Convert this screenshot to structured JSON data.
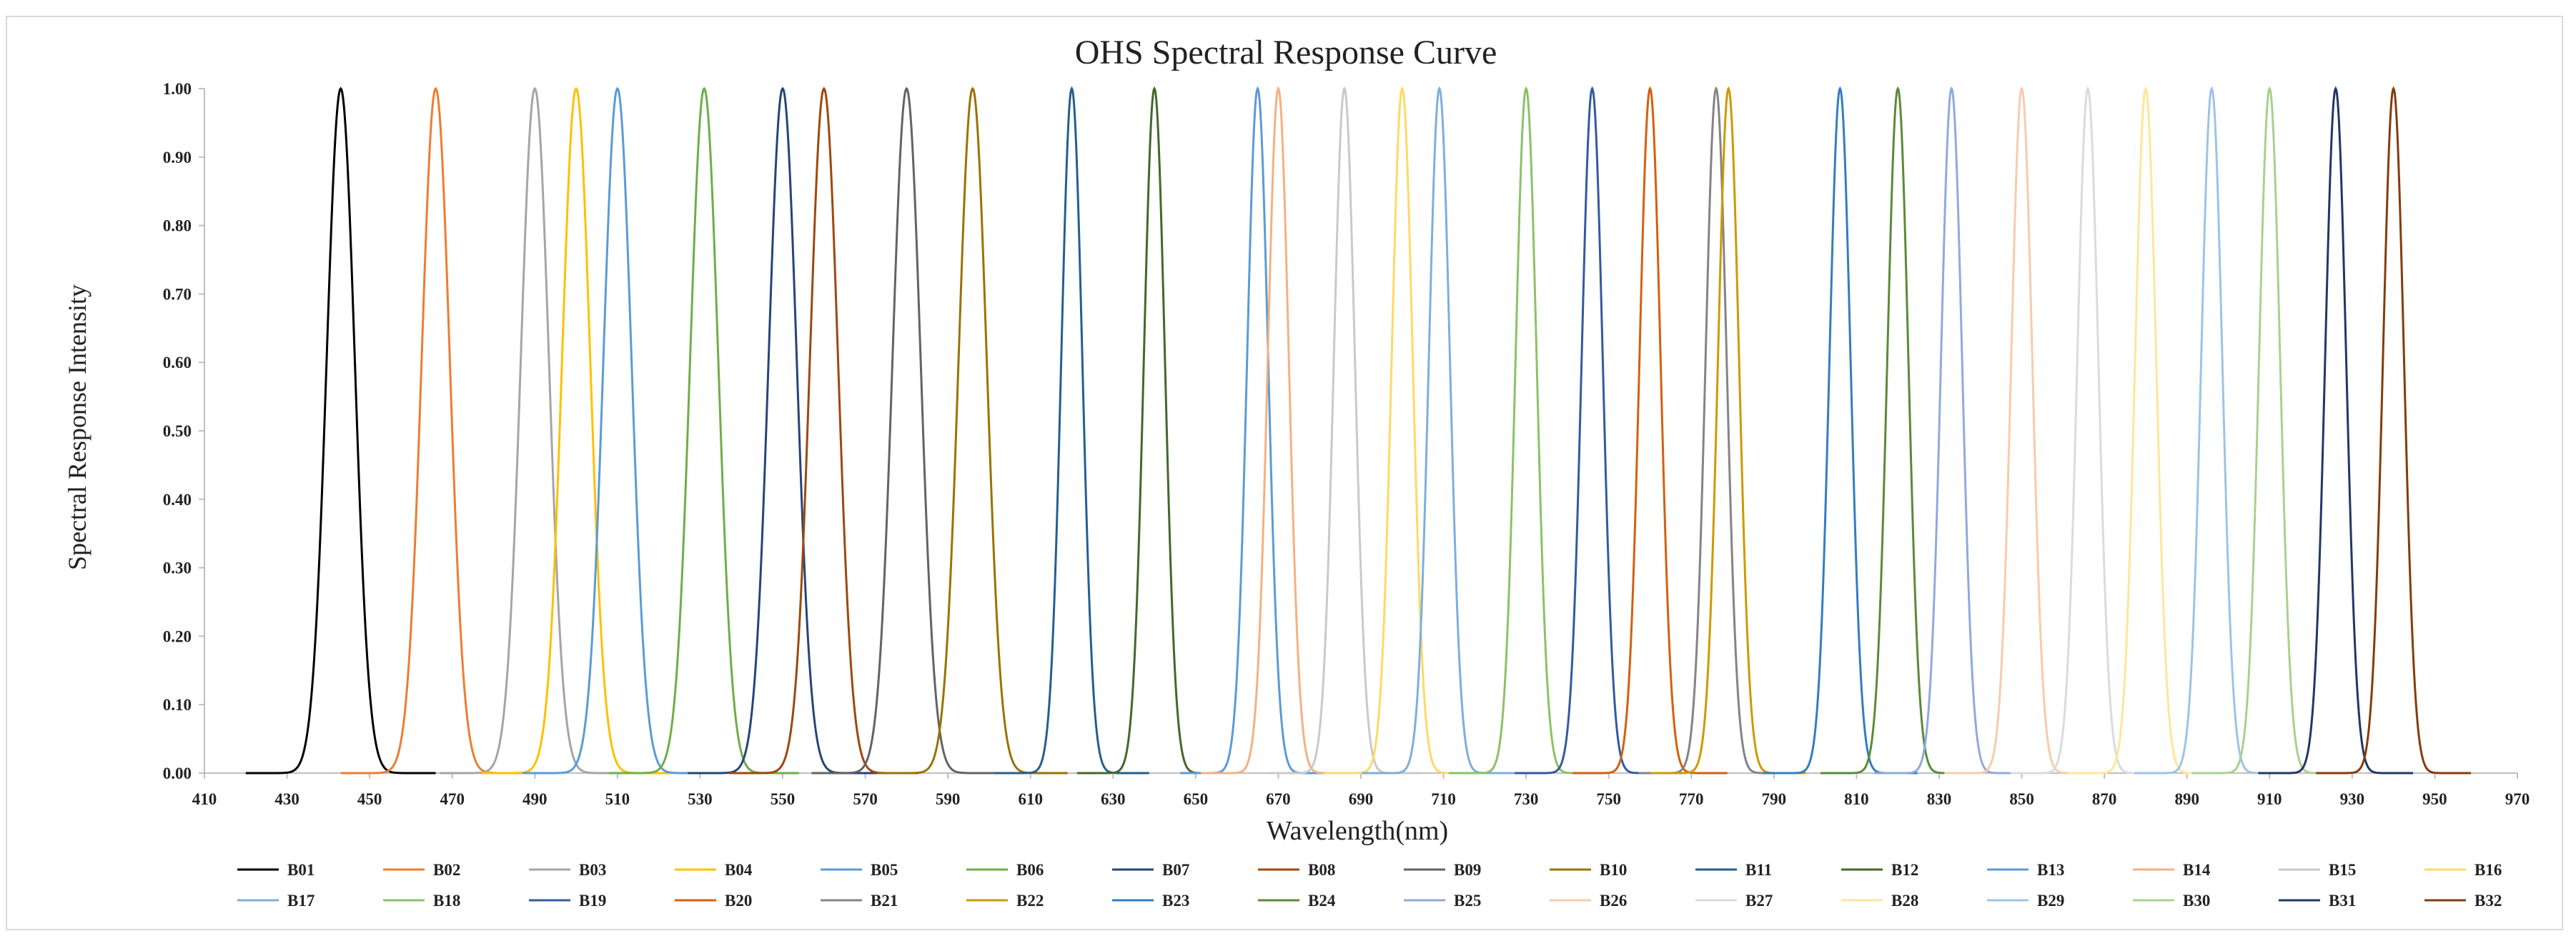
{
  "chart_data": {
    "type": "line",
    "title": "OHS Spectral Response Curve",
    "xlabel": "Wavelength(nm)",
    "ylabel": "Spectral Response Intensity",
    "xlim": [
      410,
      970
    ],
    "ylim": [
      0,
      1
    ],
    "x_ticks": [
      "410",
      "430",
      "450",
      "470",
      "490",
      "510",
      "530",
      "550",
      "570",
      "590",
      "610",
      "630",
      "650",
      "670",
      "690",
      "710",
      "730",
      "750",
      "770",
      "790",
      "810",
      "830",
      "850",
      "870",
      "890",
      "910",
      "930",
      "950",
      "970"
    ],
    "y_ticks": [
      "0.00",
      "0.10",
      "0.20",
      "0.30",
      "0.40",
      "0.50",
      "0.60",
      "0.70",
      "0.80",
      "0.90",
      "1.00"
    ],
    "grid": false,
    "legend": "bottom",
    "series": [
      {
        "name": "B01",
        "center": 443,
        "fwhm": 8,
        "color": "#000000"
      },
      {
        "name": "B02",
        "center": 466,
        "fwhm": 8,
        "color": "#ED7D31"
      },
      {
        "name": "B03",
        "center": 490,
        "fwhm": 8,
        "color": "#A5A5A5"
      },
      {
        "name": "B04",
        "center": 500,
        "fwhm": 8,
        "color": "#FFC000"
      },
      {
        "name": "B05",
        "center": 510,
        "fwhm": 8,
        "color": "#5B9BD5"
      },
      {
        "name": "B06",
        "center": 531,
        "fwhm": 8,
        "color": "#70AD47"
      },
      {
        "name": "B07",
        "center": 550,
        "fwhm": 8,
        "color": "#264478"
      },
      {
        "name": "B08",
        "center": 560,
        "fwhm": 8,
        "color": "#9E480E"
      },
      {
        "name": "B09",
        "center": 580,
        "fwhm": 8,
        "color": "#636363"
      },
      {
        "name": "B10",
        "center": 596,
        "fwhm": 8,
        "color": "#997300"
      },
      {
        "name": "B11",
        "center": 620,
        "fwhm": 6,
        "color": "#255E91"
      },
      {
        "name": "B12",
        "center": 640,
        "fwhm": 6,
        "color": "#43682B"
      },
      {
        "name": "B13",
        "center": 665,
        "fwhm": 6,
        "color": "#5B9BD5"
      },
      {
        "name": "B14",
        "center": 670,
        "fwhm": 6,
        "color": "#F4B183"
      },
      {
        "name": "B15",
        "center": 686,
        "fwhm": 6,
        "color": "#C9C9C9"
      },
      {
        "name": "B16",
        "center": 700,
        "fwhm": 6,
        "color": "#FFD966"
      },
      {
        "name": "B17",
        "center": 709,
        "fwhm": 6,
        "color": "#7CAFDD"
      },
      {
        "name": "B18",
        "center": 730,
        "fwhm": 6,
        "color": "#8CC168"
      },
      {
        "name": "B19",
        "center": 746,
        "fwhm": 6,
        "color": "#335AA1"
      },
      {
        "name": "B20",
        "center": 760,
        "fwhm": 6,
        "color": "#D26012"
      },
      {
        "name": "B21",
        "center": 776,
        "fwhm": 6,
        "color": "#848484"
      },
      {
        "name": "B22",
        "center": 779,
        "fwhm": 6,
        "color": "#CC9A00"
      },
      {
        "name": "B23",
        "center": 806,
        "fwhm": 6,
        "color": "#327DC2"
      },
      {
        "name": "B24",
        "center": 820,
        "fwhm": 6,
        "color": "#5A8A39"
      },
      {
        "name": "B25",
        "center": 833,
        "fwhm": 6,
        "color": "#8FAADC"
      },
      {
        "name": "B26",
        "center": 850,
        "fwhm": 6,
        "color": "#F8CBAD"
      },
      {
        "name": "B27",
        "center": 866,
        "fwhm": 6,
        "color": "#DBDBDB"
      },
      {
        "name": "B28",
        "center": 880,
        "fwhm": 6,
        "color": "#FFE699"
      },
      {
        "name": "B29",
        "center": 896,
        "fwhm": 6,
        "color": "#9DC3E6"
      },
      {
        "name": "B30",
        "center": 910,
        "fwhm": 6,
        "color": "#A9D18E"
      },
      {
        "name": "B31",
        "center": 926,
        "fwhm": 6,
        "color": "#1F3864"
      },
      {
        "name": "B32",
        "center": 940,
        "fwhm": 6,
        "color": "#843C0C"
      }
    ]
  }
}
